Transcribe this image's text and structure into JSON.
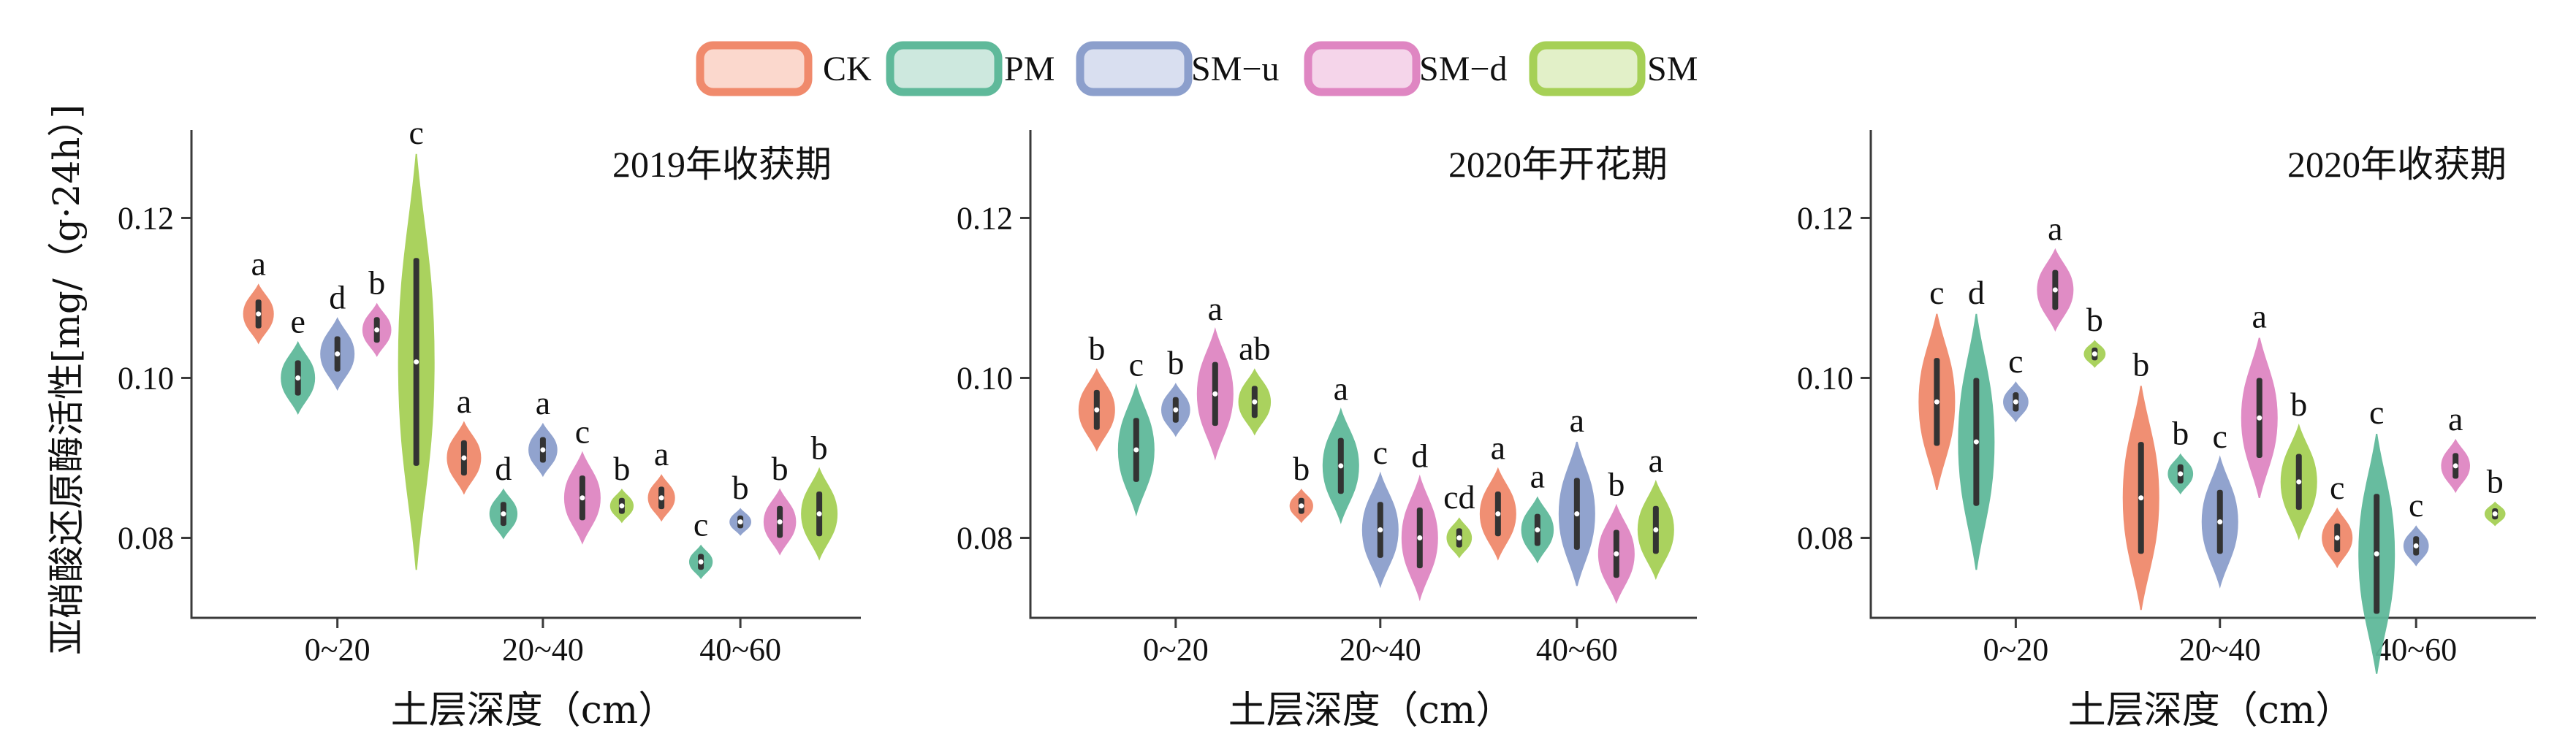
{
  "legend": {
    "items": [
      {
        "label": "CK",
        "color": "#f08a6c",
        "fill": "#fbd8cd"
      },
      {
        "label": "PM",
        "color": "#5fb99a",
        "fill": "#cde8de"
      },
      {
        "label": "SM−u",
        "color": "#8c9fcc",
        "fill": "#d9dff0"
      },
      {
        "label": "SM−d",
        "color": "#df86c2",
        "fill": "#f5d5ea"
      },
      {
        "label": "SM",
        "color": "#a6d056",
        "fill": "#e2f0c8"
      }
    ]
  },
  "ylabel": "亚硝酸还原酶活性[mg/（g·24h）]",
  "chart_data": [
    {
      "type": "violin",
      "title": "2019年收获期",
      "xlabel": "土层深度（cm）",
      "categories": [
        "0~20",
        "20~40",
        "40~60"
      ],
      "ylim": [
        0.07,
        0.131
      ],
      "yticks": [
        "0.08",
        "0.10",
        "0.12"
      ],
      "ytick_values": [
        0.08,
        0.1,
        0.12
      ],
      "series": [
        {
          "name": "CK",
          "median": [
            0.108,
            0.09,
            0.085
          ],
          "spread": [
            0.0018,
            0.0022,
            0.0014
          ],
          "sig": [
            "a",
            "a",
            "a"
          ]
        },
        {
          "name": "PM",
          "median": [
            0.1,
            0.083,
            0.077
          ],
          "spread": [
            0.0022,
            0.0015,
            0.001
          ],
          "sig": [
            "e",
            "d",
            "c"
          ]
        },
        {
          "name": "SM−u",
          "median": [
            0.103,
            0.091,
            0.082
          ],
          "spread": [
            0.0022,
            0.0016,
            0.0008
          ],
          "sig": [
            "d",
            "a",
            "b"
          ]
        },
        {
          "name": "SM−d",
          "median": [
            0.106,
            0.085,
            0.082
          ],
          "spread": [
            0.0016,
            0.0028,
            0.002
          ],
          "sig": [
            "b",
            "c",
            "b"
          ]
        },
        {
          "name": "SM",
          "median": [
            0.102,
            0.084,
            0.083
          ],
          "spread": [
            0.013,
            0.001,
            0.0028
          ],
          "sig": [
            "c",
            "b",
            "b"
          ]
        }
      ]
    },
    {
      "type": "violin",
      "title": "2020年开花期",
      "xlabel": "土层深度（cm）",
      "categories": [
        "0~20",
        "20~40",
        "40~60"
      ],
      "ylim": [
        0.07,
        0.131
      ],
      "yticks": [
        "0.08",
        "0.10",
        "0.12"
      ],
      "ytick_values": [
        0.08,
        0.1,
        0.12
      ],
      "series": [
        {
          "name": "CK",
          "median": [
            0.096,
            0.084,
            0.083
          ],
          "spread": [
            0.0025,
            0.001,
            0.0028
          ],
          "sig": [
            "b",
            "b",
            "a"
          ]
        },
        {
          "name": "PM",
          "median": [
            0.091,
            0.089,
            0.081
          ],
          "spread": [
            0.004,
            0.0035,
            0.002
          ],
          "sig": [
            "c",
            "a",
            "a"
          ]
        },
        {
          "name": "SM−u",
          "median": [
            0.096,
            0.081,
            0.083
          ],
          "spread": [
            0.0016,
            0.0035,
            0.0045
          ],
          "sig": [
            "b",
            "c",
            "a"
          ]
        },
        {
          "name": "SM−d",
          "median": [
            0.098,
            0.08,
            0.078
          ],
          "spread": [
            0.004,
            0.0038,
            0.003
          ],
          "sig": [
            "a",
            "d",
            "b"
          ]
        },
        {
          "name": "SM",
          "median": [
            0.097,
            0.08,
            0.081
          ],
          "spread": [
            0.002,
            0.0012,
            0.003
          ],
          "sig": [
            "ab",
            "cd",
            "a"
          ]
        }
      ]
    },
    {
      "type": "violin",
      "title": "2020年收获期",
      "xlabel": "土层深度（cm）",
      "categories": [
        "0~20",
        "20~40",
        "40~60"
      ],
      "ylim": [
        0.07,
        0.131
      ],
      "yticks": [
        "0.08",
        "0.10",
        "0.12"
      ],
      "ytick_values": [
        0.08,
        0.1,
        0.12
      ],
      "series": [
        {
          "name": "CK",
          "median": [
            0.097,
            0.085,
            0.08
          ],
          "spread": [
            0.0055,
            0.007,
            0.0018
          ],
          "sig": [
            "c",
            "b",
            "c"
          ]
        },
        {
          "name": "PM",
          "median": [
            0.092,
            0.088,
            0.078
          ],
          "spread": [
            0.008,
            0.0012,
            0.0075
          ],
          "sig": [
            "d",
            "b",
            "c"
          ]
        },
        {
          "name": "SM−u",
          "median": [
            0.097,
            0.082,
            0.079
          ],
          "spread": [
            0.0012,
            0.004,
            0.0012
          ],
          "sig": [
            "c",
            "c",
            "c"
          ]
        },
        {
          "name": "SM−d",
          "median": [
            0.111,
            0.095,
            0.089
          ],
          "spread": [
            0.0025,
            0.005,
            0.0016
          ],
          "sig": [
            "a",
            "a",
            "a"
          ]
        },
        {
          "name": "SM",
          "median": [
            0.103,
            0.087,
            0.083
          ],
          "spread": [
            0.0008,
            0.0035,
            0.0007
          ],
          "sig": [
            "b",
            "b",
            "b"
          ]
        }
      ]
    }
  ]
}
